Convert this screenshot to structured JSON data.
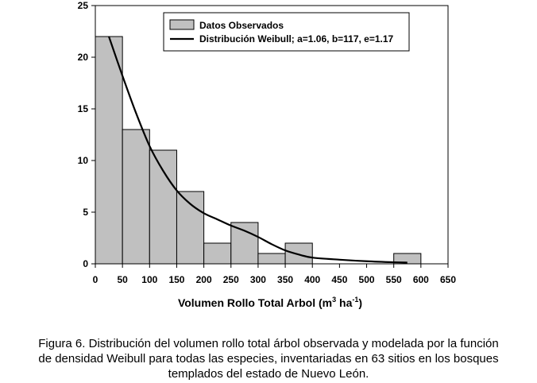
{
  "chart_data": {
    "type": "bar",
    "bins": [
      {
        "from": 0,
        "to": 50,
        "value": 22
      },
      {
        "from": 50,
        "to": 100,
        "value": 13
      },
      {
        "from": 100,
        "to": 150,
        "value": 11
      },
      {
        "from": 150,
        "to": 200,
        "value": 7
      },
      {
        "from": 200,
        "to": 250,
        "value": 2
      },
      {
        "from": 250,
        "to": 300,
        "value": 4
      },
      {
        "from": 300,
        "to": 350,
        "value": 1
      },
      {
        "from": 350,
        "to": 400,
        "value": 2
      },
      {
        "from": 400,
        "to": 450,
        "value": 0
      },
      {
        "from": 450,
        "to": 500,
        "value": 0
      },
      {
        "from": 500,
        "to": 550,
        "value": 0
      },
      {
        "from": 550,
        "to": 600,
        "value": 1
      }
    ],
    "series": [
      {
        "name": "Datos Observados",
        "type": "bar"
      },
      {
        "name": "Distribución Weibull; a=1.06, b=117, e=1.17",
        "type": "line",
        "x": [
          25,
          50,
          75,
          100,
          125,
          150,
          175,
          200,
          225,
          250,
          275,
          300,
          325,
          350,
          375,
          400,
          450,
          500,
          550,
          575
        ],
        "y": [
          22,
          18.2,
          14.6,
          11.4,
          9.0,
          7.1,
          5.8,
          4.9,
          4.3,
          3.7,
          3.2,
          2.6,
          1.9,
          1.3,
          0.9,
          0.6,
          0.4,
          0.25,
          0.15,
          0.12
        ]
      }
    ],
    "xlim": [
      0,
      650
    ],
    "ylim": [
      0,
      25
    ],
    "xticks": [
      0,
      50,
      100,
      150,
      200,
      250,
      300,
      350,
      400,
      450,
      500,
      550,
      600,
      650
    ],
    "yticks": [
      0,
      5,
      10,
      15,
      20,
      25
    ],
    "xlabel": "Volumen Rollo Total Arbol (m",
    "xlabel_sup1": "3",
    "xlabel_mid": " ha",
    "xlabel_sup2": "-1",
    "xlabel_end": ")",
    "ylabel": "",
    "title": "",
    "legend_position": "top-right",
    "grid": false
  },
  "caption": {
    "line1": "Figura 6. Distribución del volumen rollo total árbol observada y modelada por la función",
    "line2": "de densidad Weibull para todas las especies, inventariadas en 63 sitios en los bosques",
    "line3": "templados del estado de Nuevo León."
  },
  "colors": {
    "bar_fill": "#c0c0c0",
    "bar_stroke": "#000000",
    "curve": "#000000",
    "axis": "#000000"
  }
}
